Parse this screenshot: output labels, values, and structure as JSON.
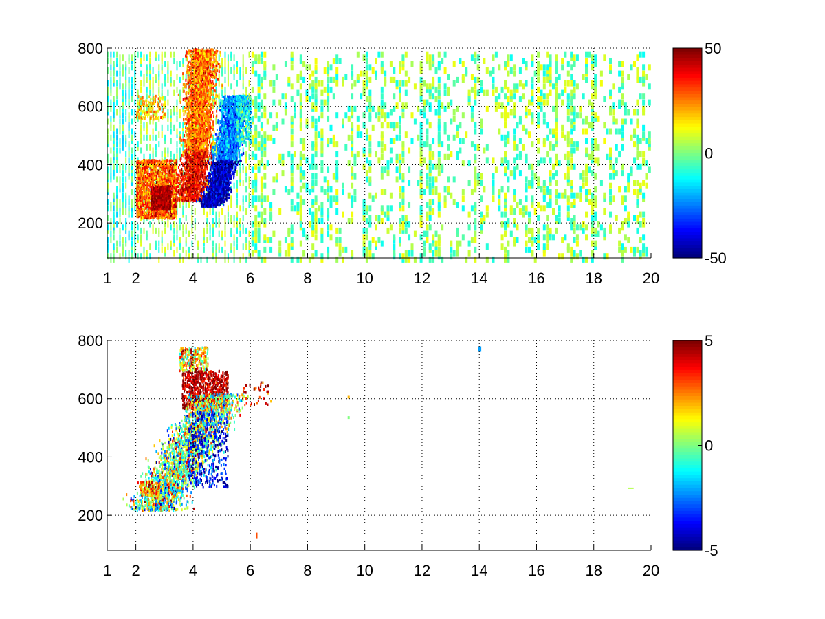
{
  "chart_data": [
    {
      "type": "heatmap",
      "title": "",
      "xlabel": "",
      "ylabel": "",
      "xlim": [
        1,
        20
      ],
      "ylim": [
        80,
        800
      ],
      "x_ticks": [
        "1",
        "2",
        "4",
        "6",
        "8",
        "10",
        "12",
        "14",
        "16",
        "18",
        "20"
      ],
      "y_ticks": [
        "200",
        "400",
        "600",
        "800"
      ],
      "grid": true,
      "colormap": "jet",
      "colorbar": {
        "range": [
          -50,
          50
        ],
        "ticks": [
          "50",
          "0",
          "-50"
        ]
      },
      "features": [
        {
          "desc": "dense positive band",
          "x_range": [
            2,
            3.4
          ],
          "y_range": [
            220,
            420
          ],
          "value": 35
        },
        {
          "desc": "strong positive core",
          "x_range": [
            2.5,
            3.2
          ],
          "y_range": [
            250,
            340
          ],
          "value": 50
        },
        {
          "desc": "positive arc",
          "x_range": [
            3.5,
            5.0
          ],
          "y_range": [
            280,
            800
          ],
          "value": 30
        },
        {
          "desc": "negative arc",
          "x_range": [
            4.2,
            5.8
          ],
          "y_range": [
            260,
            620
          ],
          "value": -45
        },
        {
          "desc": "sparse near-zero columns",
          "x_range": [
            6,
            20
          ],
          "y_range": [
            80,
            800
          ],
          "value": 3
        }
      ]
    },
    {
      "type": "heatmap",
      "title": "",
      "xlabel": "",
      "ylabel": "",
      "xlim": [
        1,
        20
      ],
      "ylim": [
        80,
        800
      ],
      "x_ticks": [
        "1",
        "2",
        "4",
        "6",
        "8",
        "10",
        "12",
        "14",
        "16",
        "18",
        "20"
      ],
      "y_ticks": [
        "200",
        "400",
        "600",
        "800"
      ],
      "grid": true,
      "colormap": "jet",
      "colorbar": {
        "range": [
          -5,
          5
        ],
        "ticks": [
          "5",
          "0",
          "-5"
        ]
      },
      "features": [
        {
          "desc": "strong positive patch",
          "x_range": [
            3.6,
            5.2
          ],
          "y_range": [
            570,
            700
          ],
          "value": 5
        },
        {
          "desc": "mixed noisy arc",
          "x_range": [
            2.2,
            5.9
          ],
          "y_range": [
            220,
            620
          ],
          "value": 0
        },
        {
          "desc": "negative cluster",
          "x_range": [
            3.8,
            5.2
          ],
          "y_range": [
            300,
            560
          ],
          "value": -4
        },
        {
          "desc": "isolated cyan point",
          "x_range": [
            13.9,
            14.0
          ],
          "y_range": [
            760,
            780
          ],
          "value": -2
        }
      ]
    }
  ]
}
